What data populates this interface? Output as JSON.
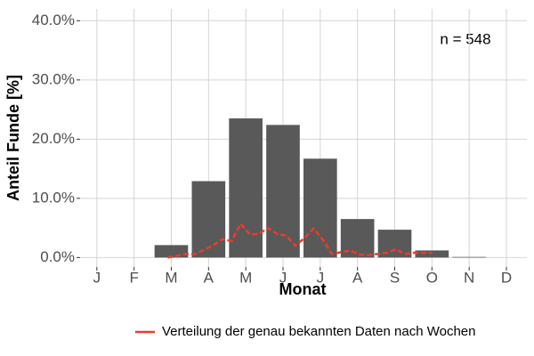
{
  "chart_data": {
    "type": "bar",
    "x_label": "Monat",
    "y_label": "Anteil Funde [%]",
    "annotation": "n = 548",
    "categories": [
      "J",
      "F",
      "M",
      "A",
      "M",
      "J",
      "J",
      "A",
      "S",
      "O",
      "N",
      "D"
    ],
    "xlim": [
      0.55,
      12.55
    ],
    "series": [
      {
        "type": "bar",
        "color": "#595959",
        "values": [
          0,
          0,
          2.1,
          12.9,
          23.5,
          22.4,
          16.7,
          6.5,
          4.7,
          1.2,
          0.1,
          0
        ]
      },
      {
        "type": "line",
        "name": "Verteilung der genau bekannten Daten nach Wochen",
        "color": "#ee3b2b",
        "x": [
          2.9,
          3.15,
          3.39,
          3.64,
          3.88,
          4.13,
          4.37,
          4.62,
          4.86,
          5.11,
          5.35,
          5.6,
          5.84,
          6.09,
          6.33,
          6.58,
          6.82,
          7.07,
          7.31,
          7.56,
          7.8,
          8.05,
          8.29,
          8.54,
          8.78,
          9.03,
          9.27,
          9.52,
          9.76,
          10.0
        ],
        "values": [
          0,
          0.3,
          0.6,
          0.6,
          1.3,
          2.1,
          3.1,
          2.8,
          5.7,
          3.9,
          4.0,
          5.0,
          4.0,
          3.7,
          2.0,
          3.3,
          4.9,
          3.0,
          0.6,
          0.9,
          1.2,
          0.5,
          0.4,
          0.6,
          0.8,
          1.4,
          0.6,
          0.8,
          0.8,
          0.8
        ]
      }
    ],
    "ylim": [
      -1.6,
      42
    ],
    "yticks": [
      {
        "value": 0,
        "label": "0.0%"
      },
      {
        "value": 10,
        "label": "10.0%"
      },
      {
        "value": 20,
        "label": "20.0%"
      },
      {
        "value": 30,
        "label": "30.0%"
      },
      {
        "value": 40,
        "label": "40.0%"
      }
    ],
    "grid": true
  }
}
